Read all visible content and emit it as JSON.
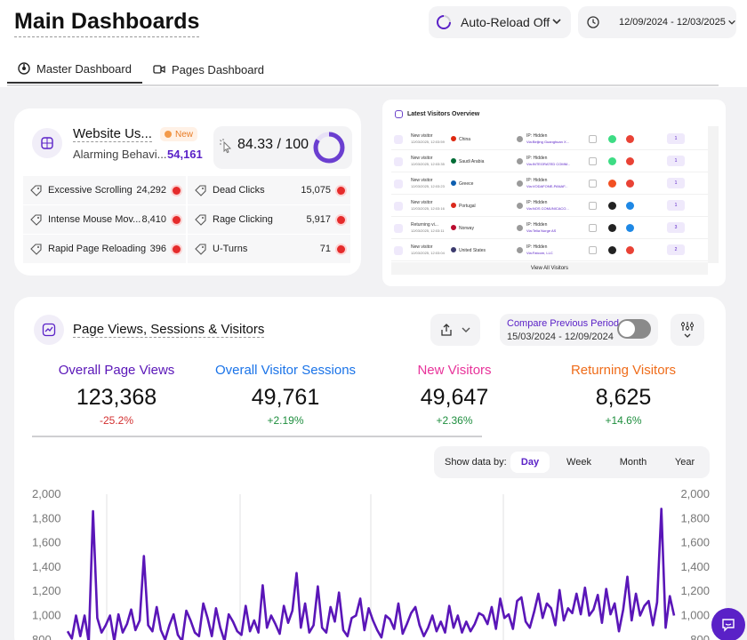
{
  "header": {
    "title": "Main Dashboards",
    "auto_reload": "Auto-Reload Off",
    "date_range": "12/09/2024 - 12/03/2025"
  },
  "tabs": [
    {
      "label": "Master Dashboard",
      "active": true,
      "icon": "dashboard-icon"
    },
    {
      "label": "Pages Dashboard",
      "active": false,
      "icon": "video-icon"
    }
  ],
  "usability": {
    "title": "Website Us...",
    "badge": "New",
    "subtitle": "Alarming Behavi...",
    "count": "54,161",
    "score": "84.33 / 100",
    "score_fraction": 0.8433,
    "metrics": [
      {
        "label": "Excessive Scrolling",
        "value": "24,292"
      },
      {
        "label": "Dead Clicks",
        "value": "15,075"
      },
      {
        "label": "Intense Mouse Mov...",
        "value": "8,410"
      },
      {
        "label": "Rage Clicking",
        "value": "5,917"
      },
      {
        "label": "Rapid Page Reloading",
        "value": "396"
      },
      {
        "label": "U-Turns",
        "value": "71"
      }
    ]
  },
  "visitors": {
    "title": "Latest Visitors Overview",
    "view_all": "View All Visitors",
    "rows": [
      {
        "type": "New visitor",
        "date": "12/03/2025, 12:03:59",
        "country": "China",
        "flag_color": "#de2910",
        "ip": "IP: Hidden",
        "isp": "Via:Beijing Guanghuan X...",
        "devices": [
          "#bdbdbd",
          "#3ddc84",
          "#e94235"
        ],
        "sessions": "1"
      },
      {
        "type": "New visitor",
        "date": "12/03/2025, 12:03:35",
        "country": "Saudi Arabia",
        "flag_color": "#006c35",
        "ip": "IP: Hidden",
        "isp": "Via:INTEGRATED COMM...",
        "devices": [
          "#bdbdbd",
          "#3ddc84",
          "#e94235"
        ],
        "sessions": "1"
      },
      {
        "type": "New visitor",
        "date": "12/03/2025, 12:03:23",
        "country": "Greece",
        "flag_color": "#0d5eaf",
        "ip": "IP: Hidden",
        "isp": "Via:VODAFONE-PANAF...",
        "devices": [
          "#bdbdbd",
          "#f25022",
          "#e94235"
        ],
        "sessions": "1"
      },
      {
        "type": "New visitor",
        "date": "12/03/2025, 12:03:16",
        "country": "Portugal",
        "flag_color": "#da291c",
        "ip": "IP: Hidden",
        "isp": "Via:NOS COMUNICACO...",
        "devices": [
          "#bdbdbd",
          "#222222",
          "#1e88e5"
        ],
        "sessions": "1"
      },
      {
        "type": "Returning vi...",
        "date": "12/03/2025, 12:03:11",
        "country": "Norway",
        "flag_color": "#ba0c2f",
        "ip": "IP: Hidden",
        "isp": "Via:Telia Norge AS",
        "devices": [
          "#bdbdbd",
          "#222222",
          "#1e88e5"
        ],
        "sessions": "3"
      },
      {
        "type": "New visitor",
        "date": "12/03/2025, 12:03:04",
        "country": "United States",
        "flag_color": "#3c3b6e",
        "ip": "IP: Hidden",
        "isp": "Via:Fatcom, LLC",
        "devices": [
          "#bdbdbd",
          "#222222",
          "#e94235"
        ],
        "sessions": "2"
      }
    ]
  },
  "pageviews": {
    "title": "Page Views, Sessions & Visitors",
    "compare_label": "Compare Previous Period",
    "compare_dates": "15/03/2024 - 12/09/2024",
    "stats": [
      {
        "label": "Overall Page Views",
        "value": "123,368",
        "change": "-25.2%",
        "color": "#5a16b8",
        "change_color": "#d32f2f"
      },
      {
        "label": "Overall Visitor Sessions",
        "value": "49,761",
        "change": "+2.19%",
        "color": "#1a73e8",
        "change_color": "#1e8e3e"
      },
      {
        "label": "New Visitors",
        "value": "49,647",
        "change": "+2.36%",
        "color": "#e8339a",
        "change_color": "#1e8e3e"
      },
      {
        "label": "Returning Visitors",
        "value": "8,625",
        "change": "+14.6%",
        "color": "#ef6c1a",
        "change_color": "#1e8e3e"
      }
    ],
    "show_data_label": "Show data by:",
    "periods": [
      "Day",
      "Week",
      "Month",
      "Year"
    ],
    "active_period": "Day"
  },
  "chart_data": {
    "type": "line",
    "ylim": [
      800,
      2000
    ],
    "yticks": [
      "2,000",
      "1,800",
      "1,600",
      "1,400",
      "1,200",
      "1,000",
      "800"
    ],
    "line_color": "#5a16b8",
    "series": [
      {
        "values": [
          870,
          810,
          1000,
          830,
          1000,
          780,
          1860,
          980,
          860,
          920,
          1000,
          790,
          1010,
          860,
          930,
          1050,
          880,
          960,
          1490,
          920,
          870,
          1070,
          880,
          800,
          920,
          1010,
          840,
          790,
          1040,
          960,
          860,
          830,
          1100,
          980,
          830,
          1060,
          900,
          790,
          1010,
          950,
          870,
          840,
          1080,
          870,
          960,
          860,
          1250,
          900,
          1000,
          930,
          850,
          1080,
          940,
          1040,
          1350,
          900,
          1100,
          860,
          920,
          1240,
          900,
          860,
          1070,
          950,
          1190,
          880,
          830,
          980,
          1000,
          1140,
          880,
          1060,
          960,
          880,
          820,
          1000,
          970,
          890,
          1100,
          850,
          930,
          1020,
          1070,
          920,
          830,
          900,
          1000,
          870,
          950,
          860,
          1080,
          900,
          1000,
          860,
          950,
          870,
          930,
          1020,
          1000,
          930,
          1070,
          890,
          1140,
          980,
          1010,
          890,
          1120,
          1150,
          950,
          900,
          1030,
          1180,
          980,
          1100,
          1060,
          920,
          1210,
          960,
          1060,
          1020,
          1180,
          1010,
          1230,
          1000,
          1050,
          1170,
          940,
          1220,
          1010,
          1100,
          870,
          1050,
          1320,
          960,
          1180,
          1000,
          1080,
          1120,
          920,
          1110,
          1880,
          900,
          1160,
          1000
        ]
      }
    ]
  }
}
